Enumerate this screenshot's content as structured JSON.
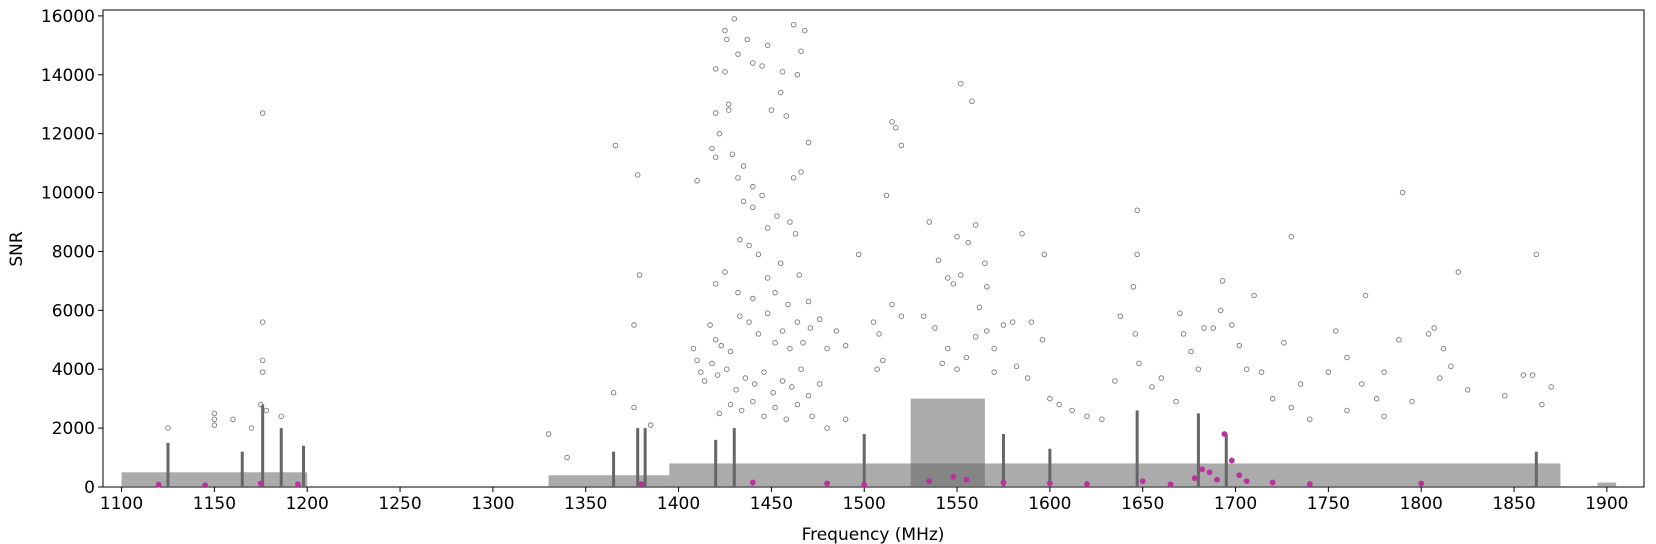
{
  "chart_data": {
    "type": "scatter",
    "title": "",
    "xlabel": "Frequency (MHz)",
    "ylabel": "SNR",
    "xlim": [
      1090,
      1920
    ],
    "ylim": [
      0,
      16200
    ],
    "xticks": [
      1100,
      1150,
      1200,
      1250,
      1300,
      1350,
      1400,
      1450,
      1500,
      1550,
      1600,
      1650,
      1700,
      1750,
      1800,
      1850,
      1900
    ],
    "yticks": [
      0,
      2000,
      4000,
      6000,
      8000,
      10000,
      12000,
      14000,
      16000
    ],
    "grid": false,
    "colors": {
      "markers": "#7a7a7a",
      "dense_band": "#666666",
      "highlight": "#b8329e",
      "axes": "#000000"
    },
    "bands": [
      {
        "x": [
          1100,
          1200
        ],
        "dense_top": 500
      },
      {
        "x": [
          1330,
          1395
        ],
        "dense_top": 400
      },
      {
        "x": [
          1395,
          1875
        ],
        "dense_top": 800
      },
      {
        "x": [
          1525,
          1565
        ],
        "dense_top": 3000
      },
      {
        "x": [
          1895,
          1905
        ],
        "dense_top": 150
      }
    ],
    "spikes": [
      {
        "x": 1125,
        "y": 1500
      },
      {
        "x": 1165,
        "y": 1200
      },
      {
        "x": 1176,
        "y": 2800
      },
      {
        "x": 1186,
        "y": 2000
      },
      {
        "x": 1198,
        "y": 1400
      },
      {
        "x": 1365,
        "y": 1200
      },
      {
        "x": 1378,
        "y": 2000
      },
      {
        "x": 1382,
        "y": 2000
      },
      {
        "x": 1420,
        "y": 1600
      },
      {
        "x": 1430,
        "y": 2000
      },
      {
        "x": 1500,
        "y": 1800
      },
      {
        "x": 1575,
        "y": 1800
      },
      {
        "x": 1600,
        "y": 1300
      },
      {
        "x": 1647,
        "y": 2600
      },
      {
        "x": 1680,
        "y": 2500
      },
      {
        "x": 1695,
        "y": 1800
      },
      {
        "x": 1862,
        "y": 1200
      }
    ],
    "series": [
      {
        "marker": "open-circle",
        "points": [
          [
            1176,
            12700
          ],
          [
            1176,
            5600
          ],
          [
            1176,
            4300
          ],
          [
            1176,
            3900
          ],
          [
            1175,
            2800
          ],
          [
            1178,
            2600
          ],
          [
            1186,
            2400
          ],
          [
            1150,
            2500
          ],
          [
            1150,
            2300
          ],
          [
            1150,
            2100
          ],
          [
            1160,
            2300
          ],
          [
            1125,
            2000
          ],
          [
            1170,
            2000
          ],
          [
            1330,
            1800
          ],
          [
            1340,
            1000
          ],
          [
            1366,
            11600
          ],
          [
            1378,
            10600
          ],
          [
            1379,
            7200
          ],
          [
            1376,
            5500
          ],
          [
            1365,
            3200
          ],
          [
            1376,
            2700
          ],
          [
            1385,
            2100
          ],
          [
            1430,
            15900
          ],
          [
            1425,
            15500
          ],
          [
            1426,
            15200
          ],
          [
            1448,
            15000
          ],
          [
            1437,
            15200
          ],
          [
            1440,
            14400
          ],
          [
            1445,
            14300
          ],
          [
            1456,
            14100
          ],
          [
            1462,
            15700
          ],
          [
            1468,
            15500
          ],
          [
            1466,
            14800
          ],
          [
            1464,
            14000
          ],
          [
            1432,
            14700
          ],
          [
            1420,
            14200
          ],
          [
            1425,
            14100
          ],
          [
            1427,
            13000
          ],
          [
            1427,
            12800
          ],
          [
            1420,
            12700
          ],
          [
            1450,
            12800
          ],
          [
            1455,
            13400
          ],
          [
            1458,
            12600
          ],
          [
            1410,
            10400
          ],
          [
            1432,
            10500
          ],
          [
            1435,
            10900
          ],
          [
            1440,
            10200
          ],
          [
            1445,
            9900
          ],
          [
            1462,
            10500
          ],
          [
            1466,
            10700
          ],
          [
            1470,
            11700
          ],
          [
            1418,
            11500
          ],
          [
            1420,
            11200
          ],
          [
            1422,
            12000
          ],
          [
            1429,
            11300
          ],
          [
            1435,
            9700
          ],
          [
            1440,
            9500
          ],
          [
            1448,
            8800
          ],
          [
            1453,
            9200
          ],
          [
            1460,
            9000
          ],
          [
            1463,
            8600
          ],
          [
            1433,
            8400
          ],
          [
            1438,
            8200
          ],
          [
            1443,
            7900
          ],
          [
            1455,
            7600
          ],
          [
            1425,
            7300
          ],
          [
            1448,
            7100
          ],
          [
            1465,
            7200
          ],
          [
            1420,
            6900
          ],
          [
            1432,
            6600
          ],
          [
            1440,
            6400
          ],
          [
            1452,
            6600
          ],
          [
            1459,
            6200
          ],
          [
            1470,
            6300
          ],
          [
            1417,
            5500
          ],
          [
            1420,
            5000
          ],
          [
            1423,
            4800
          ],
          [
            1428,
            4600
          ],
          [
            1433,
            5800
          ],
          [
            1438,
            5600
          ],
          [
            1443,
            5200
          ],
          [
            1448,
            5900
          ],
          [
            1452,
            4900
          ],
          [
            1456,
            5300
          ],
          [
            1460,
            4700
          ],
          [
            1464,
            5600
          ],
          [
            1467,
            4900
          ],
          [
            1471,
            5400
          ],
          [
            1476,
            5700
          ],
          [
            1408,
            4700
          ],
          [
            1410,
            4300
          ],
          [
            1412,
            3900
          ],
          [
            1414,
            3600
          ],
          [
            1418,
            4200
          ],
          [
            1421,
            3800
          ],
          [
            1426,
            4000
          ],
          [
            1431,
            3300
          ],
          [
            1436,
            3700
          ],
          [
            1441,
            3500
          ],
          [
            1446,
            3900
          ],
          [
            1451,
            3200
          ],
          [
            1456,
            3600
          ],
          [
            1461,
            3400
          ],
          [
            1466,
            4000
          ],
          [
            1470,
            3100
          ],
          [
            1476,
            3500
          ],
          [
            1480,
            4700
          ],
          [
            1485,
            5300
          ],
          [
            1490,
            4800
          ],
          [
            1422,
            2500
          ],
          [
            1428,
            2800
          ],
          [
            1434,
            2600
          ],
          [
            1440,
            2900
          ],
          [
            1446,
            2400
          ],
          [
            1452,
            2700
          ],
          [
            1458,
            2300
          ],
          [
            1464,
            2800
          ],
          [
            1472,
            2400
          ],
          [
            1480,
            2000
          ],
          [
            1490,
            2300
          ],
          [
            1497,
            7900
          ],
          [
            1505,
            5600
          ],
          [
            1508,
            5200
          ],
          [
            1512,
            9900
          ],
          [
            1515,
            12400
          ],
          [
            1517,
            12200
          ],
          [
            1520,
            11600
          ],
          [
            1515,
            6200
          ],
          [
            1520,
            5800
          ],
          [
            1510,
            4300
          ],
          [
            1507,
            4000
          ],
          [
            1535,
            9000
          ],
          [
            1545,
            7100
          ],
          [
            1540,
            7700
          ],
          [
            1552,
            13700
          ],
          [
            1558,
            13100
          ],
          [
            1550,
            8500
          ],
          [
            1556,
            8300
          ],
          [
            1560,
            8900
          ],
          [
            1552,
            7200
          ],
          [
            1562,
            6100
          ],
          [
            1566,
            6800
          ],
          [
            1548,
            6900
          ],
          [
            1532,
            5800
          ],
          [
            1538,
            5400
          ],
          [
            1545,
            4700
          ],
          [
            1555,
            4400
          ],
          [
            1560,
            5100
          ],
          [
            1566,
            5300
          ],
          [
            1542,
            4200
          ],
          [
            1550,
            4000
          ],
          [
            1570,
            4700
          ],
          [
            1575,
            5500
          ],
          [
            1580,
            5600
          ],
          [
            1585,
            8600
          ],
          [
            1590,
            5600
          ],
          [
            1597,
            7900
          ],
          [
            1596,
            5000
          ],
          [
            1565,
            7600
          ],
          [
            1570,
            3900
          ],
          [
            1582,
            4100
          ],
          [
            1588,
            3700
          ],
          [
            1600,
            3000
          ],
          [
            1605,
            2800
          ],
          [
            1612,
            2600
          ],
          [
            1620,
            2400
          ],
          [
            1628,
            2300
          ],
          [
            1635,
            3600
          ],
          [
            1638,
            5800
          ],
          [
            1645,
            6800
          ],
          [
            1647,
            7900
          ],
          [
            1647,
            9400
          ],
          [
            1646,
            5200
          ],
          [
            1648,
            4200
          ],
          [
            1655,
            3400
          ],
          [
            1660,
            3700
          ],
          [
            1668,
            2900
          ],
          [
            1670,
            5900
          ],
          [
            1672,
            5200
          ],
          [
            1676,
            4600
          ],
          [
            1680,
            4000
          ],
          [
            1683,
            5400
          ],
          [
            1688,
            5400
          ],
          [
            1693,
            7000
          ],
          [
            1692,
            6000
          ],
          [
            1698,
            5500
          ],
          [
            1702,
            4800
          ],
          [
            1706,
            4000
          ],
          [
            1710,
            6500
          ],
          [
            1714,
            3900
          ],
          [
            1720,
            3000
          ],
          [
            1726,
            4900
          ],
          [
            1730,
            8500
          ],
          [
            1735,
            3500
          ],
          [
            1750,
            3900
          ],
          [
            1754,
            5300
          ],
          [
            1760,
            4400
          ],
          [
            1768,
            3500
          ],
          [
            1770,
            6500
          ],
          [
            1776,
            3000
          ],
          [
            1780,
            3900
          ],
          [
            1788,
            5000
          ],
          [
            1790,
            10000
          ],
          [
            1795,
            2900
          ],
          [
            1804,
            5200
          ],
          [
            1807,
            5400
          ],
          [
            1810,
            3700
          ],
          [
            1812,
            4700
          ],
          [
            1816,
            4100
          ],
          [
            1820,
            7300
          ],
          [
            1825,
            3300
          ],
          [
            1845,
            3100
          ],
          [
            1855,
            3800
          ],
          [
            1860,
            3800
          ],
          [
            1862,
            7900
          ],
          [
            1865,
            2800
          ],
          [
            1870,
            3400
          ],
          [
            1760,
            2600
          ],
          [
            1740,
            2300
          ],
          [
            1730,
            2700
          ],
          [
            1780,
            2400
          ]
        ]
      },
      {
        "marker": "filled-circle",
        "points": [
          [
            1120,
            80
          ],
          [
            1145,
            60
          ],
          [
            1175,
            120
          ],
          [
            1195,
            90
          ],
          [
            1380,
            100
          ],
          [
            1440,
            150
          ],
          [
            1480,
            120
          ],
          [
            1500,
            80
          ],
          [
            1535,
            200
          ],
          [
            1548,
            350
          ],
          [
            1555,
            250
          ],
          [
            1575,
            150
          ],
          [
            1600,
            120
          ],
          [
            1620,
            100
          ],
          [
            1650,
            200
          ],
          [
            1665,
            90
          ],
          [
            1678,
            300
          ],
          [
            1682,
            600
          ],
          [
            1686,
            500
          ],
          [
            1690,
            250
          ],
          [
            1694,
            1800
          ],
          [
            1698,
            900
          ],
          [
            1702,
            400
          ],
          [
            1706,
            200
          ],
          [
            1720,
            150
          ],
          [
            1740,
            100
          ],
          [
            1800,
            120
          ]
        ]
      }
    ]
  }
}
